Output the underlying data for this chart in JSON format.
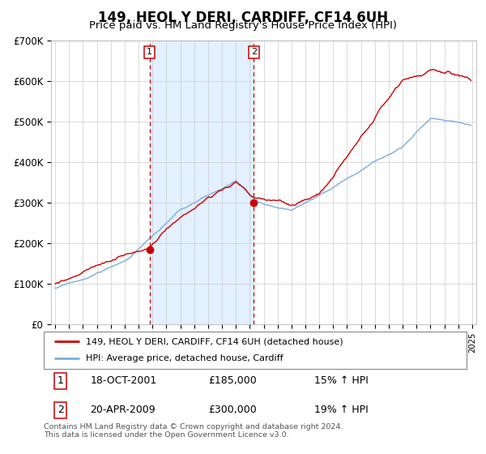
{
  "title": "149, HEOL Y DERI, CARDIFF, CF14 6UH",
  "subtitle": "Price paid vs. HM Land Registry's House Price Index (HPI)",
  "legend_line1": "149, HEOL Y DERI, CARDIFF, CF14 6UH (detached house)",
  "legend_line2": "HPI: Average price, detached house, Cardiff",
  "event1_label": "1",
  "event1_date": "18-OCT-2001",
  "event1_price": "£185,000",
  "event1_pct": "15% ↑ HPI",
  "event1_year": 2001.79,
  "event1_value": 185000,
  "event2_label": "2",
  "event2_date": "20-APR-2009",
  "event2_price": "£300,000",
  "event2_pct": "19% ↑ HPI",
  "event2_year": 2009.29,
  "event2_value": 300000,
  "footer": "Contains HM Land Registry data © Crown copyright and database right 2024.\nThis data is licensed under the Open Government Licence v3.0.",
  "red_color": "#cc0000",
  "blue_color": "#7aaddc",
  "shade_color": "#ddeeff",
  "dashed_color": "#cc0000",
  "title_fontsize": 12,
  "subtitle_fontsize": 9.5,
  "axis_fontsize": 8.5,
  "ylim": [
    0,
    700000
  ],
  "yticks": [
    0,
    100000,
    200000,
    300000,
    400000,
    500000,
    600000,
    700000
  ],
  "ytick_labels": [
    "£0",
    "£100K",
    "£200K",
    "£300K",
    "£400K",
    "£500K",
    "£600K",
    "£700K"
  ],
  "xlim_start": 1994.7,
  "xlim_end": 2025.3
}
